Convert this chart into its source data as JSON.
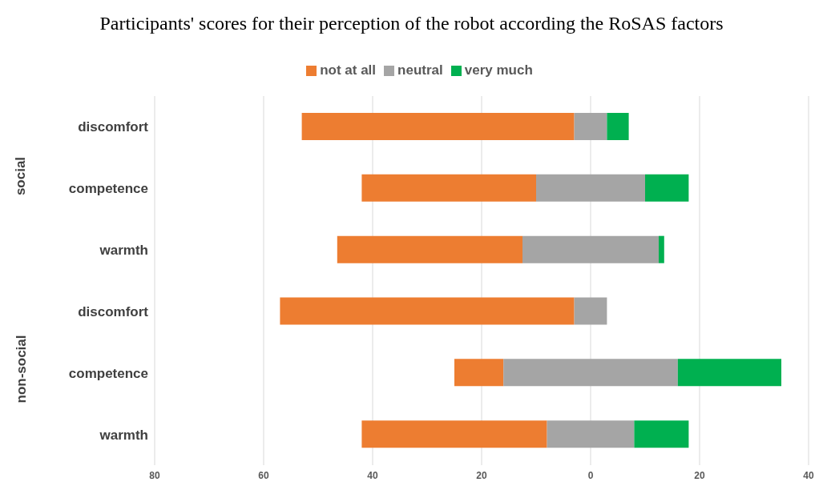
{
  "chart_data": {
    "type": "bar",
    "orientation": "horizontal",
    "title": "Participants' scores for their perception of the robot according the RoSAS factors",
    "categories": [
      "discomfort",
      "competence",
      "warmth",
      "discomfort",
      "competence",
      "warmth"
    ],
    "series": [
      {
        "name": "not at all",
        "color": "#ed7d31",
        "values": [
          50,
          32,
          34,
          54,
          9,
          34
        ],
        "base": [
          -53,
          -42,
          -46.5,
          -57,
          -25,
          -42
        ]
      },
      {
        "name": "neutral",
        "color": "#a5a5a5",
        "values": [
          6,
          20,
          25,
          6,
          32,
          16
        ],
        "base": [
          -3,
          -10,
          -12.5,
          -3,
          -16,
          -8
        ]
      },
      {
        "name": "very much",
        "color": "#00b050",
        "values": [
          4,
          8,
          1,
          null,
          19,
          10
        ],
        "base": [
          3,
          10,
          12.5,
          null,
          16,
          8
        ]
      }
    ],
    "xlim": [
      -80,
      40
    ],
    "xticks": [
      {
        "value": -80,
        "label": "80"
      },
      {
        "value": -60,
        "label": "60"
      },
      {
        "value": -40,
        "label": "40"
      },
      {
        "value": -20,
        "label": "20"
      },
      0,
      20,
      40
    ],
    "grid": "x",
    "legend": "top",
    "annotations": [
      "social",
      "non-social"
    ]
  }
}
